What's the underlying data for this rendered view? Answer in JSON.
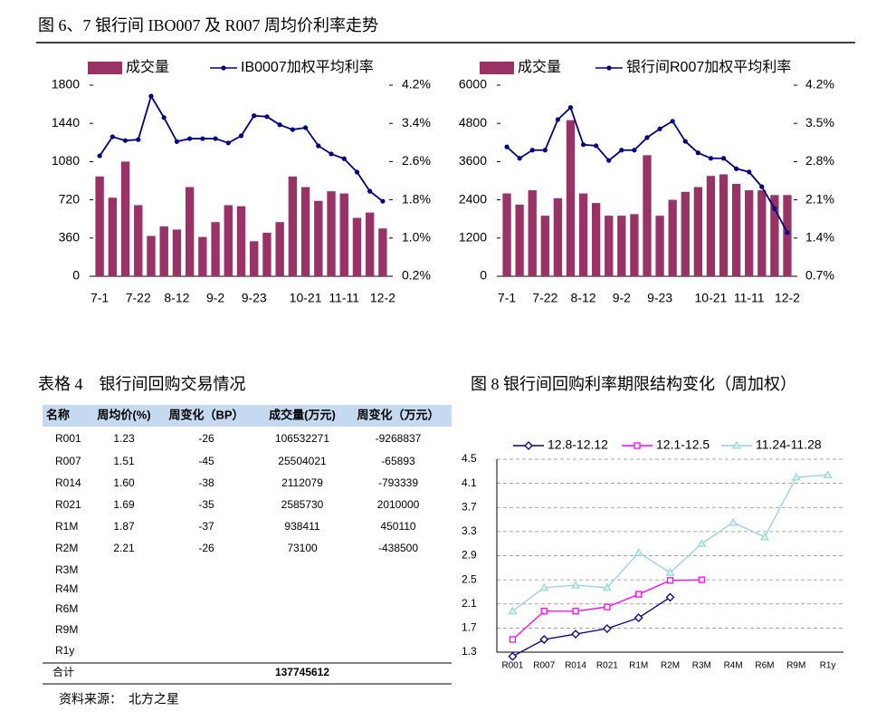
{
  "figure_title": "图 6、7 银行间 IBO007 及 R007 周均价利率走势",
  "chart_data": [
    {
      "type": "combo",
      "categories": [
        "7-1",
        null,
        null,
        "7-22",
        null,
        null,
        "8-12",
        null,
        null,
        "9-2",
        null,
        null,
        "9-23",
        null,
        null,
        null,
        "10-21",
        null,
        null,
        "11-11",
        null,
        null,
        "12-2"
      ],
      "series": [
        {
          "name": "成交量",
          "kind": "bar",
          "color": "#993366",
          "values": [
            940,
            740,
            1080,
            670,
            380,
            470,
            440,
            840,
            370,
            510,
            670,
            660,
            330,
            410,
            510,
            940,
            840,
            710,
            800,
            780,
            550,
            600,
            450
          ]
        },
        {
          "name": "IB0007加权平均利率",
          "kind": "line",
          "axis": "y2",
          "color": "#000080",
          "marker": "circle",
          "values": [
            2.72,
            3.12,
            3.04,
            3.06,
            3.97,
            3.52,
            3.02,
            3.08,
            3.08,
            3.08,
            2.99,
            3.14,
            3.56,
            3.54,
            3.37,
            3.27,
            3.31,
            2.93,
            2.76,
            2.66,
            2.38,
            1.98,
            1.77
          ]
        }
      ],
      "ylim": [
        0,
        1800
      ],
      "yticks": [
        0,
        360,
        720,
        1080,
        1440,
        1800
      ],
      "y2lim": [
        0.2,
        4.2
      ],
      "y2ticks": [
        {
          "value": 0.2,
          "label": "0.2%"
        },
        {
          "value": 1.0,
          "label": "1.0%"
        },
        {
          "value": 1.8,
          "label": "1.8%"
        },
        {
          "value": 2.6,
          "label": "2.6%"
        },
        {
          "value": 3.4,
          "label": "3.4%"
        },
        {
          "value": 4.2,
          "label": "4.2%"
        }
      ],
      "grid": false
    },
    {
      "type": "combo",
      "categories": [
        "7-1",
        null,
        null,
        "7-22",
        null,
        null,
        "8-12",
        null,
        null,
        "9-2",
        null,
        null,
        "9-23",
        null,
        null,
        null,
        "10-21",
        null,
        null,
        "11-11",
        null,
        null,
        "12-2"
      ],
      "series": [
        {
          "name": "成交量",
          "kind": "bar",
          "color": "#993366",
          "values": [
            2600,
            2250,
            2700,
            1900,
            2450,
            4900,
            2600,
            2300,
            1900,
            1900,
            1950,
            3800,
            1900,
            2400,
            2650,
            2800,
            3150,
            3200,
            2900,
            2700,
            2700,
            2550,
            2550
          ]
        },
        {
          "name": "银行间R007加权平均利率",
          "kind": "line",
          "axis": "y2",
          "color": "#000080",
          "marker": "circle",
          "values": [
            3.07,
            2.86,
            3.01,
            3.01,
            3.57,
            3.79,
            3.11,
            3.09,
            2.82,
            3.01,
            3.01,
            3.24,
            3.4,
            3.54,
            3.17,
            2.96,
            2.86,
            2.86,
            2.67,
            2.61,
            2.34,
            1.94,
            1.5
          ]
        }
      ],
      "ylim": [
        0,
        6000
      ],
      "yticks": [
        0,
        1200,
        2400,
        3600,
        4800,
        6000
      ],
      "y2lim": [
        0.7,
        4.2
      ],
      "y2ticks": [
        {
          "value": 0.7,
          "label": "0.7%"
        },
        {
          "value": 1.4,
          "label": "1.4%"
        },
        {
          "value": 2.1,
          "label": "2.1%"
        },
        {
          "value": 2.8,
          "label": "2.8%"
        },
        {
          "value": 3.5,
          "label": "3.5%"
        },
        {
          "value": 4.2,
          "label": "4.2%"
        }
      ],
      "grid": false
    },
    {
      "type": "line",
      "title": "图 8 银行间回购利率期限结构变化（周加权）",
      "categories": [
        "R001",
        "R007",
        "R014",
        "R021",
        "R1M",
        "R2M",
        "R3M",
        "R4M",
        "R6M",
        "R9M",
        "R1y"
      ],
      "series": [
        {
          "name": "12.8-12.12",
          "color": "#000080",
          "marker": "diamond",
          "values": [
            1.23,
            1.51,
            1.6,
            1.69,
            1.87,
            2.21,
            null,
            null,
            null,
            null,
            null
          ]
        },
        {
          "name": "12.1-12.5",
          "color": "#ff00ff",
          "marker": "square",
          "values": [
            1.51,
            1.98,
            1.98,
            2.05,
            2.26,
            2.49,
            2.5,
            null,
            null,
            null,
            null
          ]
        },
        {
          "name": "11.24-11.28",
          "color": "#99ccee",
          "marker": "triangle",
          "values": [
            1.98,
            2.37,
            2.41,
            2.37,
            2.95,
            2.62,
            3.1,
            3.45,
            3.21,
            4.2,
            4.24
          ]
        }
      ],
      "ylim": [
        1.3,
        4.5
      ],
      "yticks": [
        1.3,
        1.7,
        2.1,
        2.5,
        2.9,
        3.3,
        3.7,
        4.1,
        4.5
      ],
      "grid": true
    }
  ],
  "table": {
    "title": "表格 4　银行间回购交易情况",
    "header": [
      "名称",
      "周均价(%)",
      "周变化（BP）",
      "成交量(万元)",
      "周变化（万元）"
    ],
    "rows": [
      [
        "R001",
        "1.23",
        "-26",
        "106532271",
        "-9268837"
      ],
      [
        "R007",
        "1.51",
        "-45",
        "25504021",
        "-65893"
      ],
      [
        "R014",
        "1.60",
        "-38",
        "2112079",
        "-793339"
      ],
      [
        "R021",
        "1.69",
        "-35",
        "2585730",
        "2010000"
      ],
      [
        "R1M",
        "1.87",
        "-37",
        "938411",
        "450110"
      ],
      [
        "R2M",
        "2.21",
        "-26",
        "73100",
        "-438500"
      ],
      [
        "R3M"
      ],
      [
        "R4M"
      ],
      [
        "R6M"
      ],
      [
        "R9M"
      ],
      [
        "R1y"
      ]
    ],
    "total": {
      "label": "合计",
      "volume": "137745612"
    }
  },
  "source": "资料来源：　北方之星"
}
